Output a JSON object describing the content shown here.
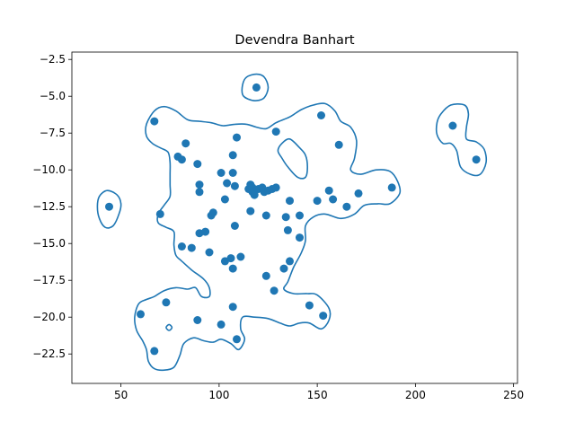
{
  "chart_data": {
    "type": "scatter",
    "title": "Devendra Banhart",
    "xlabel": "",
    "ylabel": "",
    "xlim": [
      25,
      252
    ],
    "ylim": [
      -24.5,
      -2
    ],
    "xticks": [
      50,
      100,
      150,
      200,
      250
    ],
    "yticks": [
      -2.5,
      -5.0,
      -7.5,
      -10.0,
      -12.5,
      -15.0,
      -17.5,
      -20.0,
      -22.5
    ],
    "xtick_labels": [
      "50",
      "100",
      "150",
      "200",
      "250"
    ],
    "ytick_labels": [
      "−2.5",
      "−5.0",
      "−7.5",
      "−10.0",
      "−12.5",
      "−15.0",
      "−17.5",
      "−20.0",
      "−22.5"
    ],
    "grid": false,
    "color": "#1f77b4",
    "points": [
      {
        "x": 44,
        "y": -12.5
      },
      {
        "x": 60,
        "y": -19.8
      },
      {
        "x": 67,
        "y": -6.7
      },
      {
        "x": 67,
        "y": -22.3
      },
      {
        "x": 70,
        "y": -13.0
      },
      {
        "x": 73,
        "y": -19.0
      },
      {
        "x": 79,
        "y": -9.1
      },
      {
        "x": 81,
        "y": -9.3
      },
      {
        "x": 81,
        "y": -15.2
      },
      {
        "x": 83,
        "y": -8.2
      },
      {
        "x": 86,
        "y": -15.3
      },
      {
        "x": 89,
        "y": -9.6
      },
      {
        "x": 89,
        "y": -20.2
      },
      {
        "x": 90,
        "y": -11.0
      },
      {
        "x": 90,
        "y": -11.5
      },
      {
        "x": 90,
        "y": -14.3
      },
      {
        "x": 93,
        "y": -14.2
      },
      {
        "x": 95,
        "y": -15.6
      },
      {
        "x": 96,
        "y": -13.1
      },
      {
        "x": 97,
        "y": -12.9
      },
      {
        "x": 101,
        "y": -10.2
      },
      {
        "x": 101,
        "y": -20.5
      },
      {
        "x": 103,
        "y": -12.0
      },
      {
        "x": 103,
        "y": -16.2
      },
      {
        "x": 104,
        "y": -10.9
      },
      {
        "x": 106,
        "y": -16.0
      },
      {
        "x": 107,
        "y": -9.0
      },
      {
        "x": 107,
        "y": -10.2
      },
      {
        "x": 107,
        "y": -16.7
      },
      {
        "x": 107,
        "y": -19.3
      },
      {
        "x": 108,
        "y": -11.1
      },
      {
        "x": 108,
        "y": -13.8
      },
      {
        "x": 109,
        "y": -7.8
      },
      {
        "x": 109,
        "y": -21.5
      },
      {
        "x": 111,
        "y": -15.9
      },
      {
        "x": 115,
        "y": -11.3
      },
      {
        "x": 116,
        "y": -11.0
      },
      {
        "x": 116,
        "y": -12.8
      },
      {
        "x": 117,
        "y": -11.2
      },
      {
        "x": 117,
        "y": -11.5
      },
      {
        "x": 118,
        "y": -11.7
      },
      {
        "x": 119,
        "y": -4.4
      },
      {
        "x": 120,
        "y": -11.3
      },
      {
        "x": 122,
        "y": -11.2
      },
      {
        "x": 123,
        "y": -11.5
      },
      {
        "x": 124,
        "y": -13.1
      },
      {
        "x": 124,
        "y": -17.2
      },
      {
        "x": 125,
        "y": -11.4
      },
      {
        "x": 127,
        "y": -11.3
      },
      {
        "x": 128,
        "y": -18.2
      },
      {
        "x": 129,
        "y": -7.4
      },
      {
        "x": 129,
        "y": -11.2
      },
      {
        "x": 133,
        "y": -16.7
      },
      {
        "x": 134,
        "y": -13.2
      },
      {
        "x": 135,
        "y": -14.1
      },
      {
        "x": 136,
        "y": -12.1
      },
      {
        "x": 136,
        "y": -16.2
      },
      {
        "x": 141,
        "y": -13.1
      },
      {
        "x": 141,
        "y": -14.6
      },
      {
        "x": 146,
        "y": -19.2
      },
      {
        "x": 150,
        "y": -12.1
      },
      {
        "x": 152,
        "y": -6.3
      },
      {
        "x": 153,
        "y": -19.9
      },
      {
        "x": 156,
        "y": -11.4
      },
      {
        "x": 158,
        "y": -12.0
      },
      {
        "x": 161,
        "y": -8.3
      },
      {
        "x": 165,
        "y": -12.5
      },
      {
        "x": 171,
        "y": -11.6
      },
      {
        "x": 188,
        "y": -11.2
      },
      {
        "x": 219,
        "y": -7.0
      },
      {
        "x": 231,
        "y": -9.3
      }
    ],
    "contours": [
      {
        "name": "main-region",
        "closed": true,
        "points": [
          [
            67,
            -6.0
          ],
          [
            72,
            -5.7
          ],
          [
            78,
            -6.0
          ],
          [
            84,
            -6.6
          ],
          [
            90,
            -6.7
          ],
          [
            96,
            -6.8
          ],
          [
            102,
            -7.0
          ],
          [
            108,
            -6.9
          ],
          [
            114,
            -6.9
          ],
          [
            119,
            -7.1
          ],
          [
            124,
            -7.2
          ],
          [
            129,
            -6.8
          ],
          [
            136,
            -6.4
          ],
          [
            142,
            -5.9
          ],
          [
            148,
            -5.6
          ],
          [
            154,
            -5.5
          ],
          [
            159,
            -6.0
          ],
          [
            162,
            -6.7
          ],
          [
            167,
            -7.1
          ],
          [
            170,
            -8.0
          ],
          [
            169,
            -9.2
          ],
          [
            167,
            -10.0
          ],
          [
            172,
            -10.3
          ],
          [
            180,
            -10.0
          ],
          [
            187,
            -10.1
          ],
          [
            191,
            -10.8
          ],
          [
            192,
            -11.6
          ],
          [
            187,
            -12.3
          ],
          [
            181,
            -12.3
          ],
          [
            174,
            -12.4
          ],
          [
            169,
            -13.0
          ],
          [
            162,
            -13.3
          ],
          [
            154,
            -13.0
          ],
          [
            148,
            -13.2
          ],
          [
            144,
            -13.8
          ],
          [
            144,
            -14.8
          ],
          [
            142,
            -15.6
          ],
          [
            138,
            -16.6
          ],
          [
            135,
            -17.6
          ],
          [
            133,
            -18.1
          ],
          [
            138,
            -18.4
          ],
          [
            145,
            -18.4
          ],
          [
            150,
            -18.5
          ],
          [
            156,
            -19.4
          ],
          [
            156,
            -20.2
          ],
          [
            152,
            -20.8
          ],
          [
            146,
            -20.4
          ],
          [
            141,
            -20.4
          ],
          [
            136,
            -20.6
          ],
          [
            131,
            -20.4
          ],
          [
            125,
            -20.1
          ],
          [
            118,
            -20.0
          ],
          [
            112,
            -20.0
          ],
          [
            111,
            -20.8
          ],
          [
            113,
            -21.5
          ],
          [
            110,
            -22.2
          ],
          [
            106,
            -21.8
          ],
          [
            101,
            -21.5
          ],
          [
            97,
            -21.7
          ],
          [
            92,
            -21.6
          ],
          [
            87,
            -21.4
          ],
          [
            82,
            -21.8
          ],
          [
            80,
            -22.6
          ],
          [
            77,
            -23.4
          ],
          [
            72,
            -23.6
          ],
          [
            67,
            -23.5
          ],
          [
            64,
            -23.0
          ],
          [
            63,
            -22.2
          ],
          [
            61,
            -21.6
          ],
          [
            58,
            -20.9
          ],
          [
            57,
            -20.0
          ],
          [
            59,
            -19.1
          ],
          [
            63,
            -18.8
          ],
          [
            67,
            -18.6
          ],
          [
            72,
            -18.2
          ],
          [
            78,
            -18.0
          ],
          [
            84,
            -18.1
          ],
          [
            88,
            -18.0
          ],
          [
            91,
            -18.6
          ],
          [
            95,
            -18.6
          ],
          [
            95,
            -18.0
          ],
          [
            92,
            -17.4
          ],
          [
            86,
            -16.8
          ],
          [
            81,
            -16.2
          ],
          [
            78,
            -15.8
          ],
          [
            77,
            -15.1
          ],
          [
            77,
            -14.2
          ],
          [
            73,
            -13.9
          ],
          [
            69,
            -13.6
          ],
          [
            69,
            -13.0
          ],
          [
            72,
            -12.4
          ],
          [
            75,
            -11.8
          ],
          [
            75,
            -11.0
          ],
          [
            75,
            -10.3
          ],
          [
            75,
            -9.5
          ],
          [
            74,
            -8.8
          ],
          [
            70,
            -8.5
          ],
          [
            66,
            -8.2
          ],
          [
            63,
            -7.7
          ],
          [
            63,
            -6.9
          ]
        ]
      },
      {
        "name": "inner-hole",
        "closed": true,
        "points": [
          [
            132,
            -8.2
          ],
          [
            136,
            -7.9
          ],
          [
            141,
            -8.5
          ],
          [
            144,
            -9.0
          ],
          [
            145,
            -9.8
          ],
          [
            144,
            -10.5
          ],
          [
            140,
            -10.5
          ],
          [
            135,
            -9.8
          ],
          [
            132,
            -9.2
          ],
          [
            130,
            -8.7
          ]
        ]
      },
      {
        "name": "top-island",
        "closed": true,
        "points": [
          [
            112,
            -4.2
          ],
          [
            114,
            -3.7
          ],
          [
            119,
            -3.5
          ],
          [
            123,
            -3.7
          ],
          [
            125,
            -4.4
          ],
          [
            123,
            -5.1
          ],
          [
            119,
            -5.3
          ],
          [
            115,
            -5.2
          ],
          [
            112,
            -4.9
          ]
        ]
      },
      {
        "name": "left-island",
        "closed": true,
        "points": [
          [
            38,
            -12.5
          ],
          [
            39,
            -11.8
          ],
          [
            43,
            -11.4
          ],
          [
            48,
            -11.7
          ],
          [
            50,
            -12.3
          ],
          [
            49,
            -13.0
          ],
          [
            46,
            -13.8
          ],
          [
            42,
            -13.9
          ],
          [
            39,
            -13.3
          ]
        ]
      },
      {
        "name": "right-island",
        "closed": true,
        "points": [
          [
            211,
            -6.8
          ],
          [
            213,
            -6.2
          ],
          [
            218,
            -5.6
          ],
          [
            225,
            -5.6
          ],
          [
            227,
            -6.2
          ],
          [
            226,
            -7.1
          ],
          [
            226,
            -7.9
          ],
          [
            231,
            -8.1
          ],
          [
            235,
            -8.6
          ],
          [
            236,
            -9.5
          ],
          [
            233,
            -10.3
          ],
          [
            228,
            -10.3
          ],
          [
            223,
            -9.8
          ],
          [
            221,
            -8.7
          ],
          [
            218,
            -8.2
          ],
          [
            214,
            -8.2
          ],
          [
            211,
            -7.6
          ]
        ]
      },
      {
        "name": "tiny-loop",
        "closed": true,
        "points": [
          [
            73,
            -20.7
          ],
          [
            74.5,
            -20.5
          ],
          [
            76,
            -20.7
          ],
          [
            74.5,
            -20.9
          ]
        ]
      }
    ]
  }
}
